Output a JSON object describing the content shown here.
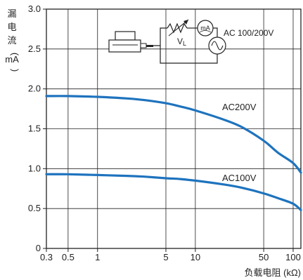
{
  "chart_data": {
    "type": "line",
    "xlabel": "负载电阻 (kΩ)",
    "ylabel": "漏电流（mA）",
    "x_scale": "log",
    "xlim": [
      0.3,
      120
    ],
    "ylim": [
      0,
      3.0
    ],
    "x_ticks": [
      0.3,
      0.5,
      1,
      5,
      10,
      50,
      100
    ],
    "x_tick_labels": [
      "0.3",
      "0.5",
      "1",
      "5",
      "10",
      "50",
      "100"
    ],
    "y_ticks": [
      0,
      0.5,
      1.0,
      1.5,
      2.0,
      2.5,
      3.0
    ],
    "y_tick_labels": [
      "0",
      "0.5",
      "1.0",
      "1.5",
      "2.0",
      "2.5",
      "3.0"
    ],
    "grid": true,
    "series": [
      {
        "name": "AC200V",
        "color": "#1e73be",
        "x": [
          0.3,
          0.5,
          1,
          2,
          3,
          5,
          7,
          10,
          20,
          30,
          50,
          70,
          100,
          120
        ],
        "y": [
          1.91,
          1.91,
          1.9,
          1.88,
          1.86,
          1.82,
          1.78,
          1.73,
          1.61,
          1.52,
          1.35,
          1.2,
          1.07,
          0.95
        ]
      },
      {
        "name": "AC100V",
        "color": "#1e73be",
        "x": [
          0.3,
          0.5,
          1,
          2,
          3,
          5,
          7,
          10,
          20,
          30,
          50,
          70,
          100,
          120
        ],
        "y": [
          0.93,
          0.93,
          0.92,
          0.91,
          0.9,
          0.88,
          0.87,
          0.85,
          0.8,
          0.76,
          0.69,
          0.63,
          0.56,
          0.48
        ]
      }
    ],
    "circuit": {
      "supply_label": "AC 100/200V",
      "resistor_label": "V",
      "resistor_subscript": "L",
      "meter_label": "mA"
    }
  }
}
